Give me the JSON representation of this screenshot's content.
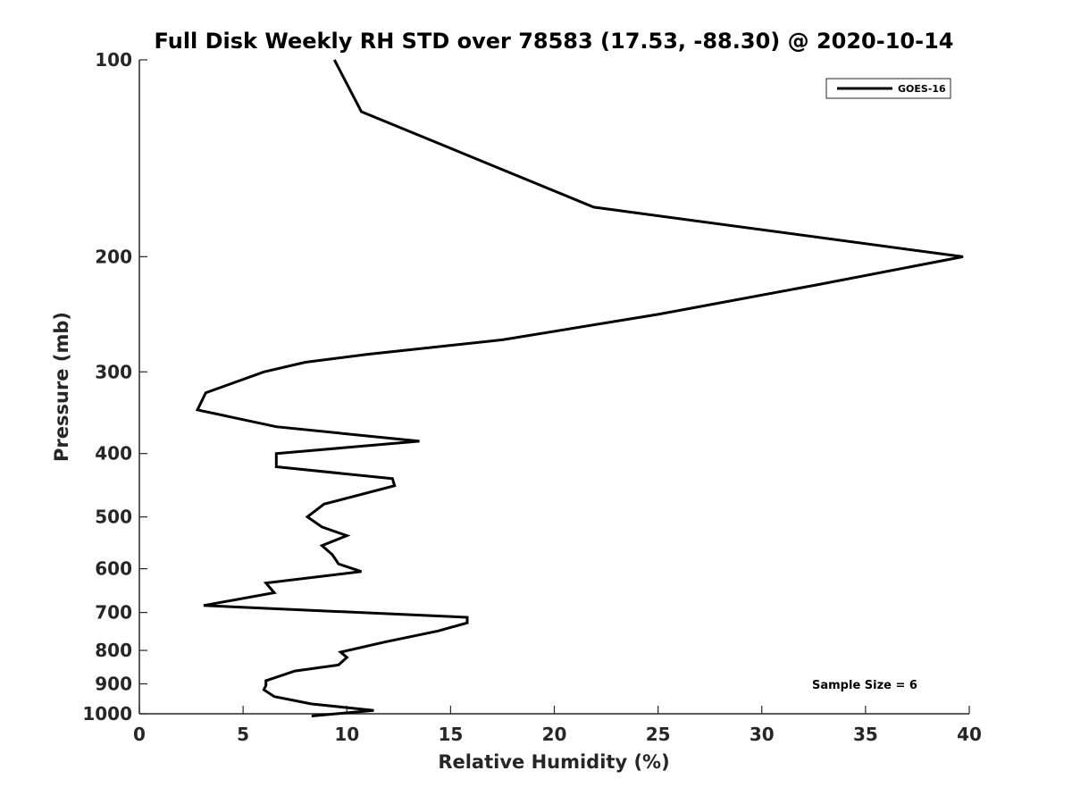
{
  "chart_data": {
    "type": "line",
    "title": "Full Disk Weekly RH STD over 78583 (17.53, -88.30) @ 2020-10-14",
    "xlabel": "Relative Humidity (%)",
    "ylabel": "Pressure (mb)",
    "xlim": [
      0,
      40
    ],
    "ylim": [
      1000,
      100
    ],
    "y_scale": "log",
    "x_ticks": [
      0,
      5,
      10,
      15,
      20,
      25,
      30,
      35,
      40
    ],
    "y_ticks": [
      100,
      200,
      300,
      400,
      500,
      600,
      700,
      800,
      900,
      1000
    ],
    "grid": false,
    "legend_position": "top-right",
    "annotation": "Sample Size = 6",
    "series": [
      {
        "name": "GOES-16",
        "color": "#000000",
        "x": [
          9.4,
          10.7,
          17.0,
          21.9,
          39.7,
          32.6,
          25.0,
          17.5,
          11.0,
          8.0,
          6.0,
          3.2,
          2.8,
          6.6,
          13.5,
          6.6,
          6.6,
          12.2,
          12.3,
          8.9,
          8.1,
          8.8,
          10.0,
          8.8,
          9.3,
          9.6,
          10.7,
          6.1,
          6.5,
          3.1,
          15.8,
          15.8,
          14.4,
          11.8,
          9.7,
          10.0,
          9.6,
          7.5,
          6.1,
          6.1,
          6.0,
          6.5,
          8.3,
          11.3,
          8.3
        ]
      }
    ],
    "pressure": [
      100,
      120,
      145,
      168,
      200,
      221,
      245,
      268,
      282,
      290,
      300,
      323,
      343,
      364,
      383,
      400,
      419,
      437,
      448,
      478,
      500,
      518,
      534,
      553,
      571,
      590,
      606,
      631,
      653,
      683,
      712,
      726,
      747,
      777,
      805,
      820,
      842,
      860,
      890,
      905,
      919,
      941,
      966,
      988,
      1008
    ]
  }
}
